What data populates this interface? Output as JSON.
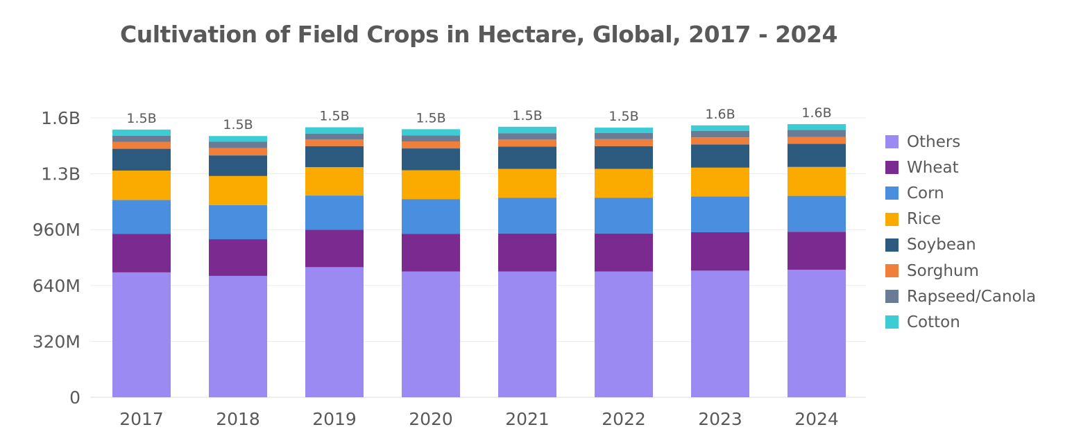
{
  "chart_data": {
    "type": "bar",
    "stacked": true,
    "title": "Cultivation of Field Crops in Hectare, Global, 2017 - 2024",
    "xlabel": "",
    "ylabel": "",
    "ylim": [
      0,
      1600000000
    ],
    "y_ticks": [
      0,
      320000000,
      640000000,
      960000000,
      1280000000,
      1600000000
    ],
    "y_tick_labels": [
      "0",
      "320M",
      "640M",
      "960M",
      "1.3B",
      "1.6B"
    ],
    "categories": [
      "2017",
      "2018",
      "2019",
      "2020",
      "2021",
      "2022",
      "2023",
      "2024"
    ],
    "totals": [
      "1.5B",
      "1.5B",
      "1.5B",
      "1.5B",
      "1.5B",
      "1.5B",
      "1.6B",
      "1.6B"
    ],
    "legend_position": "right",
    "series": [
      {
        "name": "Others",
        "color": "#9b8af2",
        "values": [
          715000000,
          695000000,
          745000000,
          720000000,
          720000000,
          720000000,
          725000000,
          730000000
        ]
      },
      {
        "name": "Wheat",
        "color": "#7b2a8f",
        "values": [
          220000000,
          210000000,
          215000000,
          215000000,
          218000000,
          218000000,
          220000000,
          218000000
        ]
      },
      {
        "name": "Corn",
        "color": "#4a8fdf",
        "values": [
          195000000,
          195000000,
          195000000,
          200000000,
          205000000,
          205000000,
          205000000,
          205000000
        ]
      },
      {
        "name": "Rice",
        "color": "#fbaa00",
        "values": [
          168000000,
          167000000,
          163000000,
          165000000,
          165000000,
          165000000,
          165000000,
          166000000
        ]
      },
      {
        "name": "Soybean",
        "color": "#2d5b80",
        "values": [
          125000000,
          118000000,
          120000000,
          125000000,
          128000000,
          130000000,
          133000000,
          132000000
        ]
      },
      {
        "name": "Sorghum",
        "color": "#f07f3c",
        "values": [
          40000000,
          42000000,
          38000000,
          40000000,
          40000000,
          40000000,
          40000000,
          40000000
        ]
      },
      {
        "name": "Rapseed/Canola",
        "color": "#6a7b96",
        "values": [
          35000000,
          36000000,
          34000000,
          35000000,
          36000000,
          36000000,
          38000000,
          40000000
        ]
      },
      {
        "name": "Cotton",
        "color": "#3bccd4",
        "values": [
          35000000,
          33000000,
          36000000,
          35000000,
          37000000,
          30000000,
          31000000,
          33000000
        ]
      }
    ]
  }
}
